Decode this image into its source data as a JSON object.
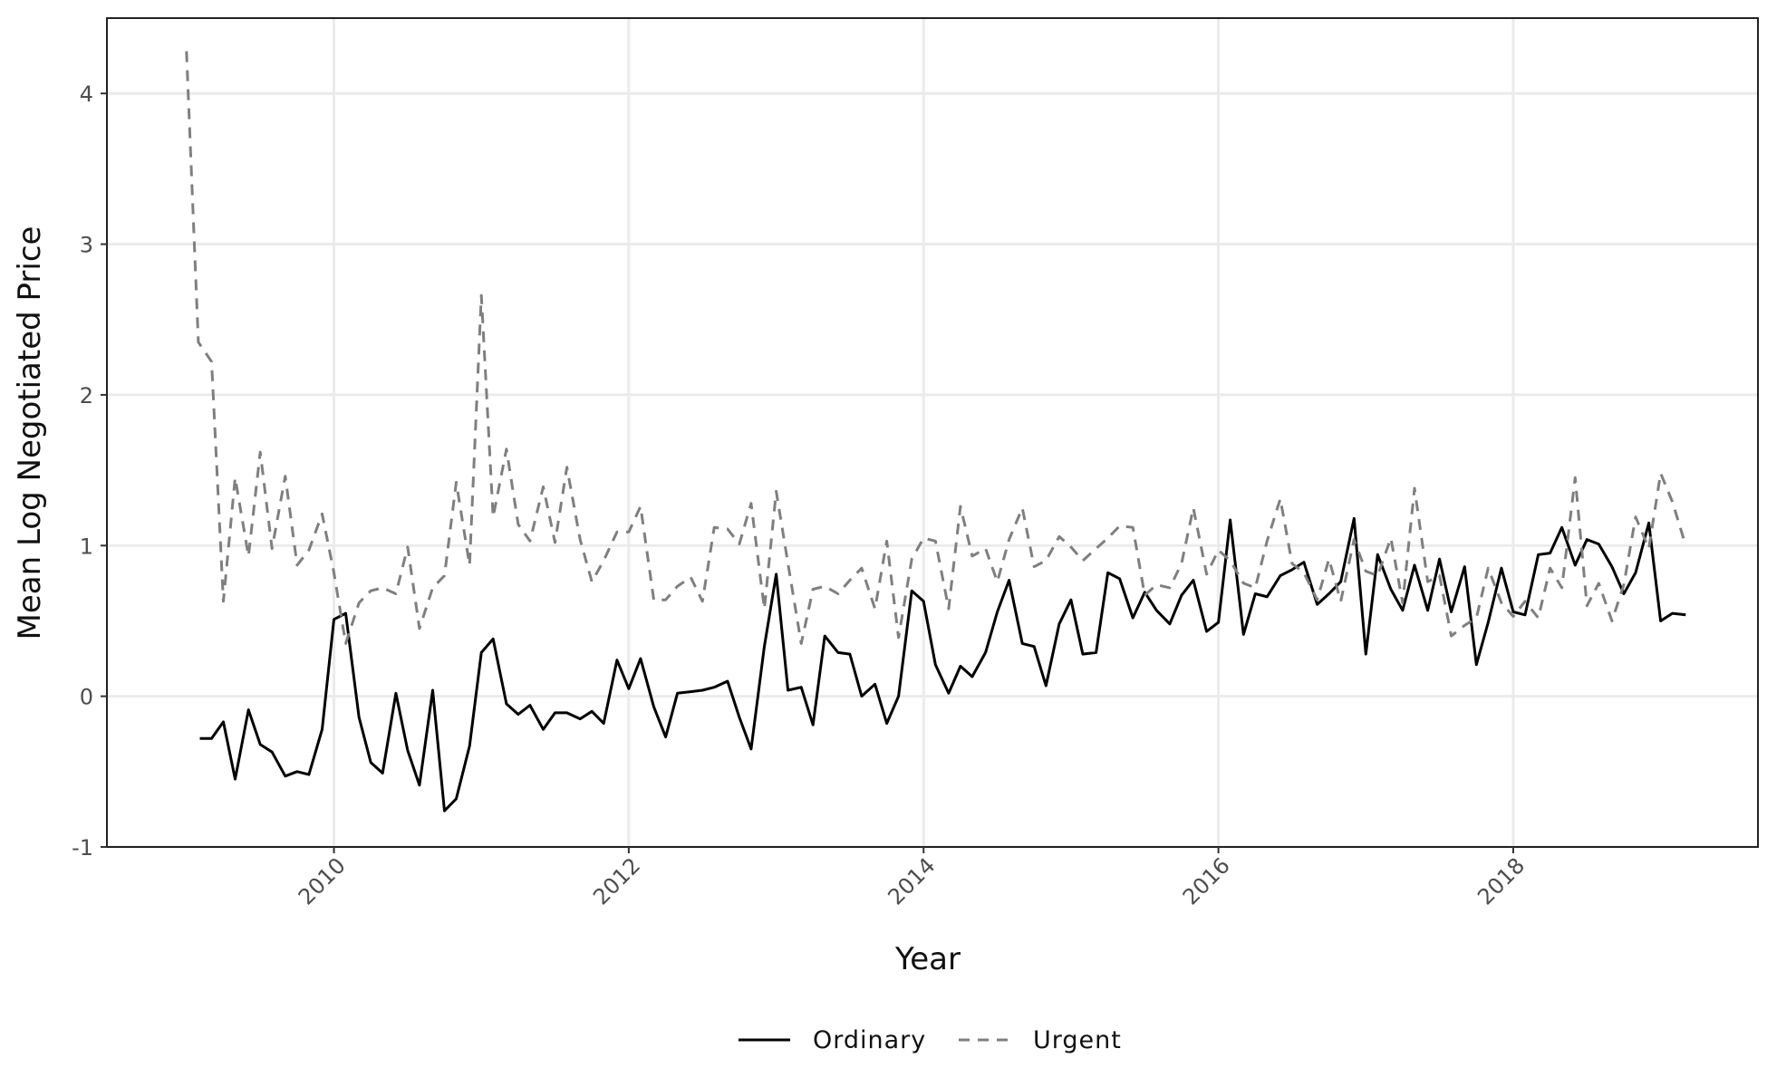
{
  "chart_data": {
    "type": "line",
    "title": "",
    "xlabel": "Year",
    "ylabel": "Mean Log Negotiated Price",
    "xlim": [
      2008.46,
      2019.66
    ],
    "ylim": [
      -1.0,
      4.5
    ],
    "x_ticks": [
      2010,
      2012,
      2014,
      2016,
      2018
    ],
    "x_tick_labels": [
      "2010",
      "2012",
      "2014",
      "2016",
      "2018"
    ],
    "y_ticks": [
      -1,
      0,
      1,
      2,
      3,
      4
    ],
    "y_tick_labels": [
      "-1",
      "0",
      "1",
      "2",
      "3",
      "4"
    ],
    "grid": true,
    "legend_position": "bottom",
    "series": [
      {
        "name": "Ordinary",
        "color": "#000000",
        "dash": "solid",
        "points": [
          [
            2009.09,
            -0.28
          ],
          [
            2009.17,
            -0.28
          ],
          [
            2009.25,
            -0.17
          ],
          [
            2009.33,
            -0.55
          ],
          [
            2009.42,
            -0.09
          ],
          [
            2009.5,
            -0.32
          ],
          [
            2009.58,
            -0.37
          ],
          [
            2009.67,
            -0.53
          ],
          [
            2009.75,
            -0.5
          ],
          [
            2009.83,
            -0.52
          ],
          [
            2009.92,
            -0.22
          ],
          [
            2010.0,
            0.51
          ],
          [
            2010.08,
            0.55
          ],
          [
            2010.17,
            -0.14
          ],
          [
            2010.25,
            -0.44
          ],
          [
            2010.33,
            -0.51
          ],
          [
            2010.42,
            0.02
          ],
          [
            2010.5,
            -0.36
          ],
          [
            2010.58,
            -0.59
          ],
          [
            2010.67,
            0.04
          ],
          [
            2010.75,
            -0.76
          ],
          [
            2010.83,
            -0.68
          ],
          [
            2010.92,
            -0.33
          ],
          [
            2011.0,
            0.29
          ],
          [
            2011.08,
            0.38
          ],
          [
            2011.17,
            -0.05
          ],
          [
            2011.25,
            -0.12
          ],
          [
            2011.33,
            -0.06
          ],
          [
            2011.42,
            -0.22
          ],
          [
            2011.5,
            -0.11
          ],
          [
            2011.58,
            -0.11
          ],
          [
            2011.67,
            -0.15
          ],
          [
            2011.75,
            -0.1
          ],
          [
            2011.83,
            -0.18
          ],
          [
            2011.92,
            0.24
          ],
          [
            2012.0,
            0.05
          ],
          [
            2012.08,
            0.25
          ],
          [
            2012.17,
            -0.07
          ],
          [
            2012.25,
            -0.27
          ],
          [
            2012.33,
            0.02
          ],
          [
            2012.42,
            0.03
          ],
          [
            2012.5,
            0.04
          ],
          [
            2012.58,
            0.06
          ],
          [
            2012.67,
            0.1
          ],
          [
            2012.75,
            -0.14
          ],
          [
            2012.83,
            -0.35
          ],
          [
            2012.92,
            0.33
          ],
          [
            2013.0,
            0.81
          ],
          [
            2013.08,
            0.04
          ],
          [
            2013.17,
            0.06
          ],
          [
            2013.25,
            -0.19
          ],
          [
            2013.33,
            0.4
          ],
          [
            2013.42,
            0.29
          ],
          [
            2013.5,
            0.28
          ],
          [
            2013.58,
            0.0
          ],
          [
            2013.67,
            0.08
          ],
          [
            2013.75,
            -0.18
          ],
          [
            2013.83,
            0.0
          ],
          [
            2013.92,
            0.7
          ],
          [
            2014.0,
            0.63
          ],
          [
            2014.08,
            0.21
          ],
          [
            2014.17,
            0.02
          ],
          [
            2014.25,
            0.2
          ],
          [
            2014.33,
            0.13
          ],
          [
            2014.42,
            0.29
          ],
          [
            2014.5,
            0.56
          ],
          [
            2014.58,
            0.77
          ],
          [
            2014.67,
            0.35
          ],
          [
            2014.75,
            0.33
          ],
          [
            2014.83,
            0.07
          ],
          [
            2014.92,
            0.48
          ],
          [
            2015.0,
            0.64
          ],
          [
            2015.08,
            0.28
          ],
          [
            2015.17,
            0.29
          ],
          [
            2015.25,
            0.82
          ],
          [
            2015.33,
            0.78
          ],
          [
            2015.42,
            0.52
          ],
          [
            2015.5,
            0.69
          ],
          [
            2015.58,
            0.57
          ],
          [
            2015.67,
            0.48
          ],
          [
            2015.75,
            0.67
          ],
          [
            2015.83,
            0.77
          ],
          [
            2015.92,
            0.43
          ],
          [
            2016.0,
            0.49
          ],
          [
            2016.08,
            1.17
          ],
          [
            2016.17,
            0.41
          ],
          [
            2016.25,
            0.68
          ],
          [
            2016.33,
            0.66
          ],
          [
            2016.42,
            0.8
          ],
          [
            2016.5,
            0.84
          ],
          [
            2016.58,
            0.89
          ],
          [
            2016.67,
            0.61
          ],
          [
            2016.75,
            0.68
          ],
          [
            2016.83,
            0.76
          ],
          [
            2016.92,
            1.18
          ],
          [
            2017.0,
            0.28
          ],
          [
            2017.08,
            0.94
          ],
          [
            2017.17,
            0.71
          ],
          [
            2017.25,
            0.57
          ],
          [
            2017.33,
            0.87
          ],
          [
            2017.42,
            0.57
          ],
          [
            2017.5,
            0.91
          ],
          [
            2017.58,
            0.56
          ],
          [
            2017.67,
            0.86
          ],
          [
            2017.75,
            0.21
          ],
          [
            2017.83,
            0.49
          ],
          [
            2017.92,
            0.85
          ],
          [
            2018.0,
            0.56
          ],
          [
            2018.08,
            0.54
          ],
          [
            2018.17,
            0.94
          ],
          [
            2018.25,
            0.95
          ],
          [
            2018.33,
            1.12
          ],
          [
            2018.42,
            0.87
          ],
          [
            2018.5,
            1.04
          ],
          [
            2018.58,
            1.01
          ],
          [
            2018.67,
            0.86
          ],
          [
            2018.75,
            0.68
          ],
          [
            2018.83,
            0.82
          ],
          [
            2018.92,
            1.15
          ],
          [
            2019.0,
            0.5
          ],
          [
            2019.08,
            0.55
          ],
          [
            2019.17,
            0.54
          ]
        ]
      },
      {
        "name": "Urgent",
        "color": "#7f7f7f",
        "dash": "dashed",
        "points": [
          [
            2009.0,
            4.28
          ],
          [
            2009.08,
            2.35
          ],
          [
            2009.17,
            2.22
          ],
          [
            2009.25,
            0.63
          ],
          [
            2009.33,
            1.45
          ],
          [
            2009.42,
            0.93
          ],
          [
            2009.5,
            1.62
          ],
          [
            2009.58,
            0.98
          ],
          [
            2009.67,
            1.46
          ],
          [
            2009.75,
            0.87
          ],
          [
            2009.83,
            0.97
          ],
          [
            2009.92,
            1.21
          ],
          [
            2010.0,
            0.82
          ],
          [
            2010.08,
            0.35
          ],
          [
            2010.17,
            0.62
          ],
          [
            2010.25,
            0.7
          ],
          [
            2010.33,
            0.72
          ],
          [
            2010.42,
            0.68
          ],
          [
            2010.5,
            0.99
          ],
          [
            2010.58,
            0.45
          ],
          [
            2010.67,
            0.72
          ],
          [
            2010.75,
            0.8
          ],
          [
            2010.83,
            1.42
          ],
          [
            2010.92,
            0.87
          ],
          [
            2011.0,
            2.66
          ],
          [
            2011.08,
            1.19
          ],
          [
            2011.17,
            1.64
          ],
          [
            2011.25,
            1.14
          ],
          [
            2011.33,
            1.03
          ],
          [
            2011.42,
            1.39
          ],
          [
            2011.5,
            1.02
          ],
          [
            2011.58,
            1.52
          ],
          [
            2011.67,
            1.04
          ],
          [
            2011.75,
            0.76
          ],
          [
            2011.83,
            0.9
          ],
          [
            2011.92,
            1.09
          ],
          [
            2012.0,
            1.09
          ],
          [
            2012.08,
            1.26
          ],
          [
            2012.17,
            0.64
          ],
          [
            2012.25,
            0.64
          ],
          [
            2012.33,
            0.73
          ],
          [
            2012.42,
            0.79
          ],
          [
            2012.5,
            0.63
          ],
          [
            2012.58,
            1.12
          ],
          [
            2012.67,
            1.11
          ],
          [
            2012.75,
            1.01
          ],
          [
            2012.83,
            1.28
          ],
          [
            2012.92,
            0.58
          ],
          [
            2013.0,
            1.36
          ],
          [
            2013.08,
            0.88
          ],
          [
            2013.17,
            0.35
          ],
          [
            2013.25,
            0.71
          ],
          [
            2013.33,
            0.73
          ],
          [
            2013.42,
            0.68
          ],
          [
            2013.5,
            0.77
          ],
          [
            2013.58,
            0.85
          ],
          [
            2013.67,
            0.58
          ],
          [
            2013.75,
            1.03
          ],
          [
            2013.83,
            0.39
          ],
          [
            2013.92,
            0.91
          ],
          [
            2014.0,
            1.05
          ],
          [
            2014.08,
            1.03
          ],
          [
            2014.17,
            0.58
          ],
          [
            2014.25,
            1.26
          ],
          [
            2014.33,
            0.93
          ],
          [
            2014.42,
            0.98
          ],
          [
            2014.5,
            0.76
          ],
          [
            2014.58,
            1.04
          ],
          [
            2014.67,
            1.25
          ],
          [
            2014.75,
            0.86
          ],
          [
            2014.83,
            0.9
          ],
          [
            2014.92,
            1.06
          ],
          [
            2015.0,
            0.99
          ],
          [
            2015.08,
            0.9
          ],
          [
            2015.17,
            0.98
          ],
          [
            2015.25,
            1.05
          ],
          [
            2015.33,
            1.13
          ],
          [
            2015.42,
            1.12
          ],
          [
            2015.5,
            0.67
          ],
          [
            2015.58,
            0.74
          ],
          [
            2015.67,
            0.72
          ],
          [
            2015.75,
            0.88
          ],
          [
            2015.83,
            1.25
          ],
          [
            2015.92,
            0.81
          ],
          [
            2016.0,
            0.97
          ],
          [
            2016.08,
            0.9
          ],
          [
            2016.17,
            0.75
          ],
          [
            2016.25,
            0.72
          ],
          [
            2016.33,
            1.03
          ],
          [
            2016.42,
            1.31
          ],
          [
            2016.5,
            0.88
          ],
          [
            2016.58,
            0.82
          ],
          [
            2016.67,
            0.64
          ],
          [
            2016.75,
            0.91
          ],
          [
            2016.83,
            0.63
          ],
          [
            2016.92,
            1.04
          ],
          [
            2017.0,
            0.83
          ],
          [
            2017.08,
            0.8
          ],
          [
            2017.17,
            1.05
          ],
          [
            2017.25,
            0.62
          ],
          [
            2017.33,
            1.38
          ],
          [
            2017.42,
            0.76
          ],
          [
            2017.5,
            0.8
          ],
          [
            2017.58,
            0.4
          ],
          [
            2017.67,
            0.47
          ],
          [
            2017.75,
            0.52
          ],
          [
            2017.83,
            0.85
          ],
          [
            2017.92,
            0.62
          ],
          [
            2018.0,
            0.53
          ],
          [
            2018.08,
            0.63
          ],
          [
            2018.17,
            0.52
          ],
          [
            2018.25,
            0.85
          ],
          [
            2018.33,
            0.72
          ],
          [
            2018.42,
            1.45
          ],
          [
            2018.5,
            0.6
          ],
          [
            2018.58,
            0.75
          ],
          [
            2018.67,
            0.5
          ],
          [
            2018.75,
            0.74
          ],
          [
            2018.83,
            1.19
          ],
          [
            2018.92,
            0.98
          ],
          [
            2019.0,
            1.48
          ],
          [
            2019.08,
            1.29
          ],
          [
            2019.17,
            1.0
          ]
        ]
      }
    ]
  }
}
